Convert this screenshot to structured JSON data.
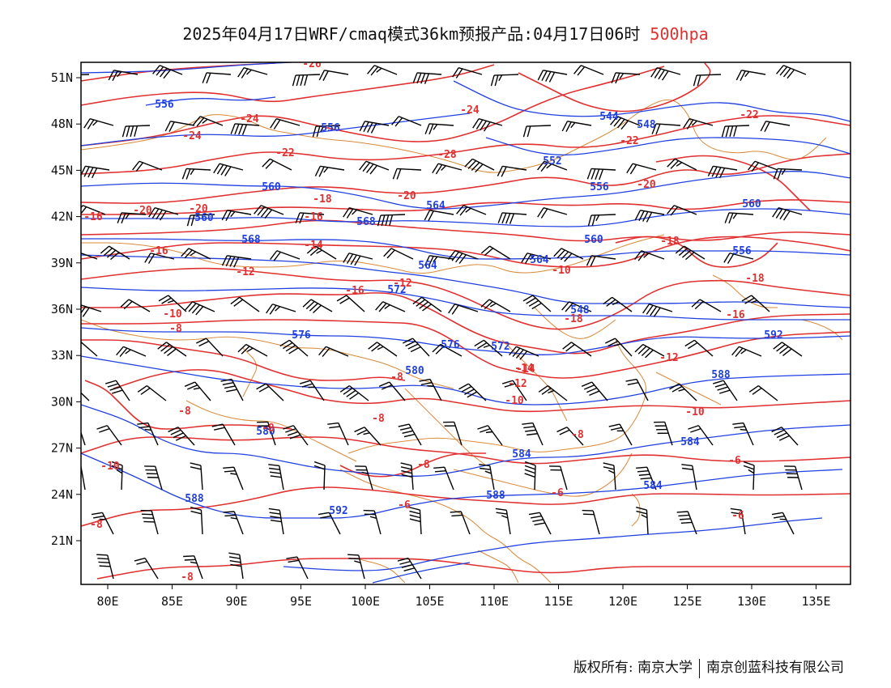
{
  "title": {
    "main": "2025年04月17日WRF/cmaq模式36km预报产品:04月17日06时",
    "level": "500hpa"
  },
  "axes": {
    "lon_ticks": [
      "80E",
      "85E",
      "90E",
      "95E",
      "100E",
      "105E",
      "110E",
      "115E",
      "120E",
      "125E",
      "130E",
      "135E"
    ],
    "lat_ticks": [
      "51N",
      "48N",
      "45N",
      "42N",
      "39N",
      "36N",
      "33N",
      "30N",
      "27N",
      "24N",
      "21N"
    ]
  },
  "colors": {
    "height": "#2040e0",
    "temp": "#e03030",
    "border": "#d98a3a",
    "wind": "#000000"
  },
  "height_labels": [
    "556",
    "556",
    "544",
    "548",
    "552",
    "560",
    "556",
    "560",
    "564",
    "568",
    "560",
    "568",
    "564",
    "556",
    "560",
    "564",
    "572",
    "548",
    "576",
    "572",
    "592",
    "576",
    "580",
    "588",
    "580",
    "584",
    "584",
    "584",
    "588",
    "592",
    "588"
  ],
  "temp_labels": [
    "-26",
    "-24",
    "-24",
    "-22",
    "-24",
    "-22",
    "-20",
    "-28",
    "-20",
    "-22",
    "-20",
    "-18",
    "-16",
    "-20",
    "-16",
    "-18",
    "-16",
    "-14",
    "-14",
    "-12",
    "-12",
    "-10",
    "-18",
    "-18",
    "-16",
    "-10",
    "-8",
    "-16",
    "-12",
    "-14",
    "-12",
    "-10",
    "-8",
    "-8",
    "-8",
    "-8",
    "-10",
    "-6",
    "-8",
    "-8",
    "-6",
    "-6",
    "-6",
    "-8",
    "-10",
    "-8"
  ],
  "footer": {
    "left": "版权所有: 南京大学",
    "right": "南京创蓝科技有限公司"
  }
}
